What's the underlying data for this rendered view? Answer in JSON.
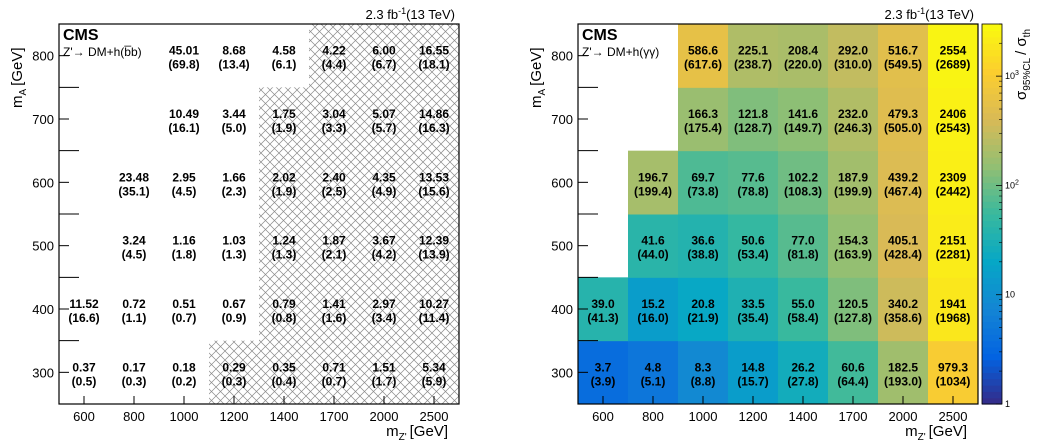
{
  "chart_data": [
    {
      "type": "heatmap",
      "header": {
        "experiment": "CMS",
        "luminosity": "2.3 fb",
        "lumi_exp": "-1",
        "energy": "(13 TeV)",
        "process": "Z'→ DM+h(b̅b)"
      },
      "xlabel": "m",
      "xlabel_sub": "Z'",
      "xlabel_unit": "[GeV]",
      "ylabel": "m",
      "ylabel_sub": "A",
      "ylabel_unit": "[GeV]",
      "x_categories": [
        "600",
        "800",
        "1000",
        "1200",
        "1400",
        "1700",
        "2000",
        "2500"
      ],
      "y_categories": [
        "300",
        "400",
        "500",
        "600",
        "700",
        "800"
      ],
      "cells": [
        {
          "x": "600",
          "y": "300",
          "obs": "0.37",
          "exp": "(0.5)",
          "excluded": false
        },
        {
          "x": "800",
          "y": "300",
          "obs": "0.17",
          "exp": "(0.3)",
          "excluded": false
        },
        {
          "x": "1000",
          "y": "300",
          "obs": "0.18",
          "exp": "(0.2)",
          "excluded": false
        },
        {
          "x": "1200",
          "y": "300",
          "obs": "0.29",
          "exp": "(0.3)",
          "excluded": true
        },
        {
          "x": "1400",
          "y": "300",
          "obs": "0.35",
          "exp": "(0.4)",
          "excluded": true
        },
        {
          "x": "1700",
          "y": "300",
          "obs": "0.71",
          "exp": "(0.7)",
          "excluded": true
        },
        {
          "x": "2000",
          "y": "300",
          "obs": "1.51",
          "exp": "(1.7)",
          "excluded": true
        },
        {
          "x": "2500",
          "y": "300",
          "obs": "5.34",
          "exp": "(5.9)",
          "excluded": true
        },
        {
          "x": "600",
          "y": "400",
          "obs": "11.52",
          "exp": "(16.6)",
          "excluded": false
        },
        {
          "x": "800",
          "y": "400",
          "obs": "0.72",
          "exp": "(1.1)",
          "excluded": false
        },
        {
          "x": "1000",
          "y": "400",
          "obs": "0.51",
          "exp": "(0.7)",
          "excluded": false
        },
        {
          "x": "1200",
          "y": "400",
          "obs": "0.67",
          "exp": "(0.9)",
          "excluded": false
        },
        {
          "x": "1400",
          "y": "400",
          "obs": "0.79",
          "exp": "(0.8)",
          "excluded": true
        },
        {
          "x": "1700",
          "y": "400",
          "obs": "1.41",
          "exp": "(1.6)",
          "excluded": true
        },
        {
          "x": "2000",
          "y": "400",
          "obs": "2.97",
          "exp": "(3.4)",
          "excluded": true
        },
        {
          "x": "2500",
          "y": "400",
          "obs": "10.27",
          "exp": "(11.4)",
          "excluded": true
        },
        {
          "x": "800",
          "y": "500",
          "obs": "3.24",
          "exp": "(4.5)",
          "excluded": false
        },
        {
          "x": "1000",
          "y": "500",
          "obs": "1.16",
          "exp": "(1.8)",
          "excluded": false
        },
        {
          "x": "1200",
          "y": "500",
          "obs": "1.03",
          "exp": "(1.3)",
          "excluded": false
        },
        {
          "x": "1400",
          "y": "500",
          "obs": "1.24",
          "exp": "(1.3)",
          "excluded": true
        },
        {
          "x": "1700",
          "y": "500",
          "obs": "1.87",
          "exp": "(2.1)",
          "excluded": true
        },
        {
          "x": "2000",
          "y": "500",
          "obs": "3.67",
          "exp": "(4.2)",
          "excluded": true
        },
        {
          "x": "2500",
          "y": "500",
          "obs": "12.39",
          "exp": "(13.9)",
          "excluded": true
        },
        {
          "x": "800",
          "y": "600",
          "obs": "23.48",
          "exp": "(35.1)",
          "excluded": false
        },
        {
          "x": "1000",
          "y": "600",
          "obs": "2.95",
          "exp": "(4.5)",
          "excluded": false
        },
        {
          "x": "1200",
          "y": "600",
          "obs": "1.66",
          "exp": "(2.3)",
          "excluded": false
        },
        {
          "x": "1400",
          "y": "600",
          "obs": "2.02",
          "exp": "(1.9)",
          "excluded": true
        },
        {
          "x": "1700",
          "y": "600",
          "obs": "2.40",
          "exp": "(2.5)",
          "excluded": true
        },
        {
          "x": "2000",
          "y": "600",
          "obs": "4.35",
          "exp": "(4.9)",
          "excluded": true
        },
        {
          "x": "2500",
          "y": "600",
          "obs": "13.53",
          "exp": "(15.6)",
          "excluded": true
        },
        {
          "x": "1000",
          "y": "700",
          "obs": "10.49",
          "exp": "(16.1)",
          "excluded": false
        },
        {
          "x": "1200",
          "y": "700",
          "obs": "3.44",
          "exp": "(5.0)",
          "excluded": false
        },
        {
          "x": "1400",
          "y": "700",
          "obs": "1.75",
          "exp": "(1.9)",
          "excluded": true
        },
        {
          "x": "1700",
          "y": "700",
          "obs": "3.04",
          "exp": "(3.3)",
          "excluded": true
        },
        {
          "x": "2000",
          "y": "700",
          "obs": "5.07",
          "exp": "(5.7)",
          "excluded": true
        },
        {
          "x": "2500",
          "y": "700",
          "obs": "14.86",
          "exp": "(16.3)",
          "excluded": true
        },
        {
          "x": "1000",
          "y": "800",
          "obs": "45.01",
          "exp": "(69.8)",
          "excluded": false
        },
        {
          "x": "1200",
          "y": "800",
          "obs": "8.68",
          "exp": "(13.4)",
          "excluded": false
        },
        {
          "x": "1400",
          "y": "800",
          "obs": "4.58",
          "exp": "(6.1)",
          "excluded": false
        },
        {
          "x": "1700",
          "y": "800",
          "obs": "4.22",
          "exp": "(4.4)",
          "excluded": true
        },
        {
          "x": "2000",
          "y": "800",
          "obs": "6.00",
          "exp": "(6.7)",
          "excluded": true
        },
        {
          "x": "2500",
          "y": "800",
          "obs": "16.55",
          "exp": "(18.1)",
          "excluded": true
        }
      ],
      "excluded_fill": "hatched",
      "grid": false
    },
    {
      "type": "heatmap",
      "header": {
        "experiment": "CMS",
        "luminosity": "2.3 fb",
        "lumi_exp": "-1",
        "energy": "(13 TeV)",
        "process": "Z'→ DM+h(γγ)"
      },
      "xlabel": "m",
      "xlabel_sub": "Z'",
      "xlabel_unit": "[GeV]",
      "ylabel": "m",
      "ylabel_sub": "A",
      "ylabel_unit": "[GeV]",
      "x_categories": [
        "600",
        "800",
        "1000",
        "1200",
        "1400",
        "1700",
        "2000",
        "2500"
      ],
      "y_categories": [
        "300",
        "400",
        "500",
        "600",
        "700",
        "800"
      ],
      "zlabel": "σ",
      "zlabel_sub": "95%CL",
      "zlabel_rest": "/ σ",
      "zlabel_rest_sub": "th",
      "z_scale": "log",
      "z_range": [
        1,
        3000
      ],
      "z_ticks": [
        {
          "value": 1,
          "label": "1"
        },
        {
          "value": 10,
          "label": "10"
        },
        {
          "value": 100,
          "label": "10",
          "exp": "2"
        },
        {
          "value": 1000,
          "label": "10",
          "exp": "3"
        }
      ],
      "colormap": [
        "#352a87",
        "#0363e1",
        "#1485d4",
        "#06a7c6",
        "#38b99e",
        "#92bf73",
        "#d9ba56",
        "#fcce2e",
        "#f9fb0e"
      ],
      "cells": [
        {
          "x": "600",
          "y": "300",
          "obs": "3.7",
          "exp": "(3.9)",
          "z": 3.7
        },
        {
          "x": "800",
          "y": "300",
          "obs": "4.8",
          "exp": "(5.1)",
          "z": 4.8
        },
        {
          "x": "1000",
          "y": "300",
          "obs": "8.3",
          "exp": "(8.8)",
          "z": 8.3
        },
        {
          "x": "1200",
          "y": "300",
          "obs": "14.8",
          "exp": "(15.7)",
          "z": 14.8
        },
        {
          "x": "1400",
          "y": "300",
          "obs": "26.2",
          "exp": "(27.8)",
          "z": 26.2
        },
        {
          "x": "1700",
          "y": "300",
          "obs": "60.6",
          "exp": "(64.4)",
          "z": 60.6
        },
        {
          "x": "2000",
          "y": "300",
          "obs": "182.5",
          "exp": "(193.0)",
          "z": 182.5
        },
        {
          "x": "2500",
          "y": "300",
          "obs": "979.3",
          "exp": "(1034)",
          "z": 979.3
        },
        {
          "x": "600",
          "y": "400",
          "obs": "39.0",
          "exp": "(41.3)",
          "z": 39.0
        },
        {
          "x": "800",
          "y": "400",
          "obs": "15.2",
          "exp": "(16.0)",
          "z": 15.2
        },
        {
          "x": "1000",
          "y": "400",
          "obs": "20.8",
          "exp": "(21.9)",
          "z": 20.8
        },
        {
          "x": "1200",
          "y": "400",
          "obs": "33.5",
          "exp": "(35.4)",
          "z": 33.5
        },
        {
          "x": "1400",
          "y": "400",
          "obs": "55.0",
          "exp": "(58.4)",
          "z": 55.0
        },
        {
          "x": "1700",
          "y": "400",
          "obs": "120.5",
          "exp": "(127.8)",
          "z": 120.5
        },
        {
          "x": "2000",
          "y": "400",
          "obs": "340.2",
          "exp": "(358.6)",
          "z": 340.2
        },
        {
          "x": "2500",
          "y": "400",
          "obs": "1941",
          "exp": "(1968)",
          "z": 1941
        },
        {
          "x": "800",
          "y": "500",
          "obs": "41.6",
          "exp": "(44.0)",
          "z": 41.6
        },
        {
          "x": "1000",
          "y": "500",
          "obs": "36.6",
          "exp": "(38.8)",
          "z": 36.6
        },
        {
          "x": "1200",
          "y": "500",
          "obs": "50.6",
          "exp": "(53.4)",
          "z": 50.6
        },
        {
          "x": "1400",
          "y": "500",
          "obs": "77.0",
          "exp": "(81.8)",
          "z": 77.0
        },
        {
          "x": "1700",
          "y": "500",
          "obs": "154.3",
          "exp": "(163.9)",
          "z": 154.3
        },
        {
          "x": "2000",
          "y": "500",
          "obs": "405.1",
          "exp": "(428.4)",
          "z": 405.1
        },
        {
          "x": "2500",
          "y": "500",
          "obs": "2151",
          "exp": "(2281)",
          "z": 2151
        },
        {
          "x": "800",
          "y": "600",
          "obs": "196.7",
          "exp": "(199.4)",
          "z": 196.7
        },
        {
          "x": "1000",
          "y": "600",
          "obs": "69.7",
          "exp": "(73.8)",
          "z": 69.7
        },
        {
          "x": "1200",
          "y": "600",
          "obs": "77.6",
          "exp": "(78.8)",
          "z": 77.6
        },
        {
          "x": "1400",
          "y": "600",
          "obs": "102.2",
          "exp": "(108.3)",
          "z": 102.2
        },
        {
          "x": "1700",
          "y": "600",
          "obs": "187.9",
          "exp": "(199.9)",
          "z": 187.9
        },
        {
          "x": "2000",
          "y": "600",
          "obs": "439.2",
          "exp": "(467.4)",
          "z": 439.2
        },
        {
          "x": "2500",
          "y": "600",
          "obs": "2309",
          "exp": "(2442)",
          "z": 2309
        },
        {
          "x": "1000",
          "y": "700",
          "obs": "166.3",
          "exp": "(175.4)",
          "z": 166.3
        },
        {
          "x": "1200",
          "y": "700",
          "obs": "121.8",
          "exp": "(128.7)",
          "z": 121.8
        },
        {
          "x": "1400",
          "y": "700",
          "obs": "141.6",
          "exp": "(149.7)",
          "z": 141.6
        },
        {
          "x": "1700",
          "y": "700",
          "obs": "232.0",
          "exp": "(246.3)",
          "z": 232.0
        },
        {
          "x": "2000",
          "y": "700",
          "obs": "479.3",
          "exp": "(505.0)",
          "z": 479.3
        },
        {
          "x": "2500",
          "y": "700",
          "obs": "2406",
          "exp": "(2543)",
          "z": 2406
        },
        {
          "x": "1000",
          "y": "800",
          "obs": "586.6",
          "exp": "(617.6)",
          "z": 586.6
        },
        {
          "x": "1200",
          "y": "800",
          "obs": "225.1",
          "exp": "(238.7)",
          "z": 225.1
        },
        {
          "x": "1400",
          "y": "800",
          "obs": "208.4",
          "exp": "(220.0)",
          "z": 208.4
        },
        {
          "x": "1700",
          "y": "800",
          "obs": "292.0",
          "exp": "(310.0)",
          "z": 292.0
        },
        {
          "x": "2000",
          "y": "800",
          "obs": "516.7",
          "exp": "(549.5)",
          "z": 516.7
        },
        {
          "x": "2500",
          "y": "800",
          "obs": "2554",
          "exp": "(2689)",
          "z": 2554
        }
      ],
      "grid": false
    }
  ]
}
